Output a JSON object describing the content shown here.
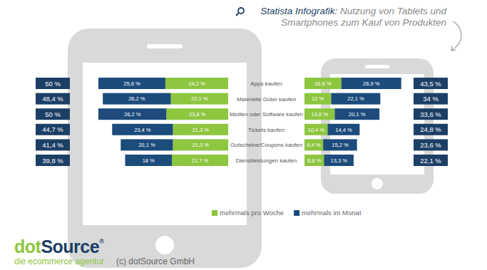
{
  "chart_data": [
    {
      "type": "bar",
      "title": "Statista Infografik: Nutzung von Tablets und Smartphones zum Kauf von Produkten",
      "categories": [
        "Apps kaufen",
        "Materielle Güter kaufen",
        "Medien oder Software kaufen",
        "Tickets kaufen",
        "Gutscheine/Coupons kaufen",
        "Dienstleistungen kaufen"
      ],
      "orientation": "horizontal",
      "stacked": true,
      "data_labels": true,
      "tick_labels": false,
      "grid": false,
      "legend": "bottom",
      "xlim": [
        50,
        0
      ],
      "series": [
        {
          "name": "mehrmals pro Woche",
          "color": "#8dc63f",
          "values": [
            24.2,
            22.1,
            23.8,
            21.3,
            21.3,
            21.7
          ],
          "value_labels": [
            "24,2 %",
            "22,1 %",
            "23,8 %",
            "21,3 %",
            "21,3 %",
            "21,7 %"
          ]
        },
        {
          "name": "mehrmals im Monat",
          "color": "#1c4b7c",
          "values": [
            25.8,
            26.2,
            26.2,
            23.4,
            20.1,
            18
          ],
          "value_labels": [
            "25,8 %",
            "26,2 %",
            "26,2 %",
            "23,4 %",
            "20,1 %",
            "18 %"
          ]
        }
      ],
      "totals": [
        50,
        48.4,
        50,
        44.7,
        41.4,
        39.8
      ],
      "total_labels": [
        "50 %",
        "48,4 %",
        "50 %",
        "44,7 %",
        "41,4 %",
        "39,8 %"
      ],
      "logo": "dotSource®",
      "logo_tagline": "die ecommerce agentur",
      "source": "(c) dotSource GmbH"
    },
    {
      "type": "bar",
      "orientation": "horizontal",
      "stacked": true,
      "data_labels": true,
      "tick_labels": false,
      "grid": false,
      "xlim": [
        0,
        50
      ],
      "series": [
        {
          "color": "#8dc63f",
          "values": [
            16.6,
            12,
            13.6,
            10.4,
            8.4,
            8.8
          ],
          "value_labels": [
            "16,6 %",
            "12 %",
            "13,6 %",
            "10,4 %",
            "8,4 %",
            "8,8 %"
          ]
        },
        {
          "color": "#1c4b7c",
          "values": [
            26.9,
            22.1,
            20.1,
            14.4,
            15.2,
            13.3
          ],
          "value_labels": [
            "26,9 %",
            "22,1 %",
            "20,1 %",
            "14,4 %",
            "15,2 %",
            "13,3 %"
          ]
        }
      ],
      "totals": [
        43.5,
        34,
        33.6,
        24.8,
        23.6,
        22.1
      ],
      "total_labels": [
        "43,5 %",
        "34 %",
        "33,6 %",
        "24,8 %",
        "23,6 %",
        "22,1 %"
      ]
    }
  ]
}
